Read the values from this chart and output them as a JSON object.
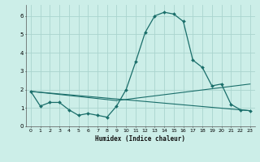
{
  "xlabel": "Humidex (Indice chaleur)",
  "bg_color": "#cceee8",
  "grid_color": "#aad4ce",
  "line_color": "#1a6e6a",
  "xlim": [
    -0.5,
    23.5
  ],
  "ylim": [
    0,
    6.6
  ],
  "yticks": [
    0,
    1,
    2,
    3,
    4,
    5,
    6
  ],
  "xticks": [
    0,
    1,
    2,
    3,
    4,
    5,
    6,
    7,
    8,
    9,
    10,
    11,
    12,
    13,
    14,
    15,
    16,
    17,
    18,
    19,
    20,
    21,
    22,
    23
  ],
  "series1_x": [
    0,
    1,
    2,
    3,
    4,
    5,
    6,
    7,
    8,
    9,
    10,
    11,
    12,
    13,
    14,
    15,
    16,
    17,
    18,
    19,
    20,
    21,
    22,
    23
  ],
  "series1_y": [
    1.9,
    1.1,
    1.3,
    1.3,
    0.9,
    0.6,
    0.7,
    0.6,
    0.5,
    1.1,
    2.0,
    3.5,
    5.1,
    6.0,
    6.2,
    6.1,
    5.7,
    3.6,
    3.2,
    2.2,
    2.3,
    1.2,
    0.9,
    0.85
  ],
  "series2_x": [
    0,
    23
  ],
  "series2_y": [
    1.9,
    0.85
  ],
  "series3_x": [
    0,
    9,
    23
  ],
  "series3_y": [
    1.9,
    1.4,
    2.3
  ],
  "figwidth": 3.2,
  "figheight": 2.0,
  "dpi": 100
}
